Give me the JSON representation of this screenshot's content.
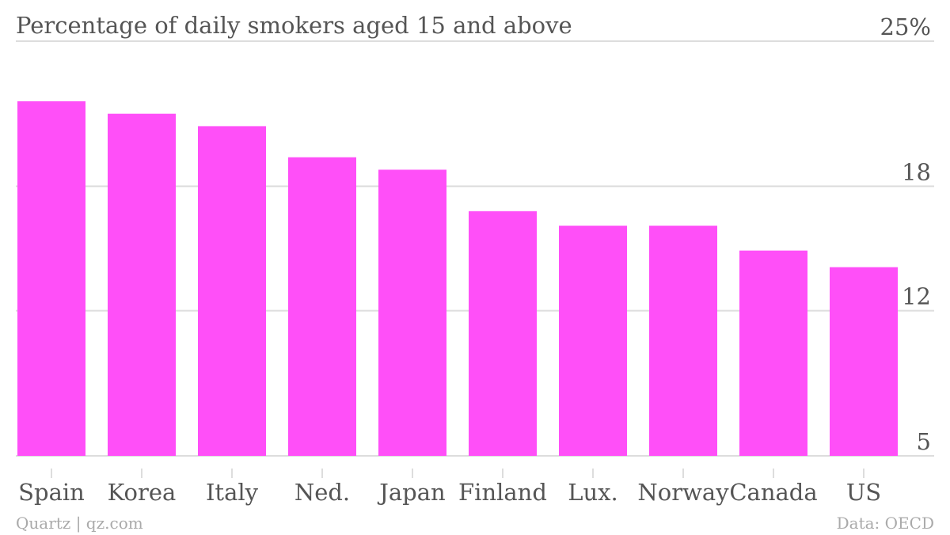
{
  "chart_data": {
    "type": "bar",
    "title": "Percentage of daily smokers aged 15 and above",
    "categories": [
      "Spain",
      "Korea",
      "Italy",
      "Ned.",
      "Japan",
      "Finland",
      "Lux.",
      "Norway",
      "Canada",
      "US"
    ],
    "values": [
      22.1,
      21.5,
      20.9,
      19.4,
      18.8,
      16.8,
      16.1,
      16.1,
      14.9,
      14.1
    ],
    "yticks": [
      5,
      12,
      18,
      25
    ],
    "ytick_labels": [
      "5",
      "12",
      "18",
      "25%"
    ],
    "ylim": [
      5,
      25
    ],
    "grid": true,
    "bar_color": "#ff4ff8"
  },
  "footer": {
    "source_left": "Quartz | qz.com",
    "source_right": "Data: OECD"
  }
}
